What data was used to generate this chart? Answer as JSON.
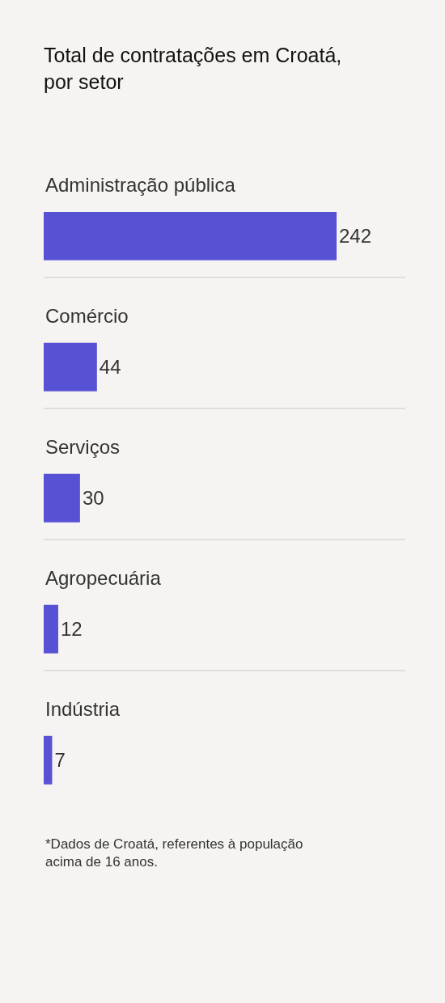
{
  "chart_data": {
    "type": "bar",
    "orientation": "horizontal",
    "title": "Total de contratações em Croatá, por setor",
    "categories": [
      "Administração pública",
      "Comércio",
      "Serviços",
      "Agropecuária",
      "Indústria"
    ],
    "values": [
      242,
      44,
      30,
      12,
      7
    ],
    "color": "#5751d4",
    "data_labels": true,
    "grid": "y",
    "tick_labels": "y",
    "annotations": [
      "*Dados de Croatá, referentes à população acima de 16 anos."
    ]
  }
}
